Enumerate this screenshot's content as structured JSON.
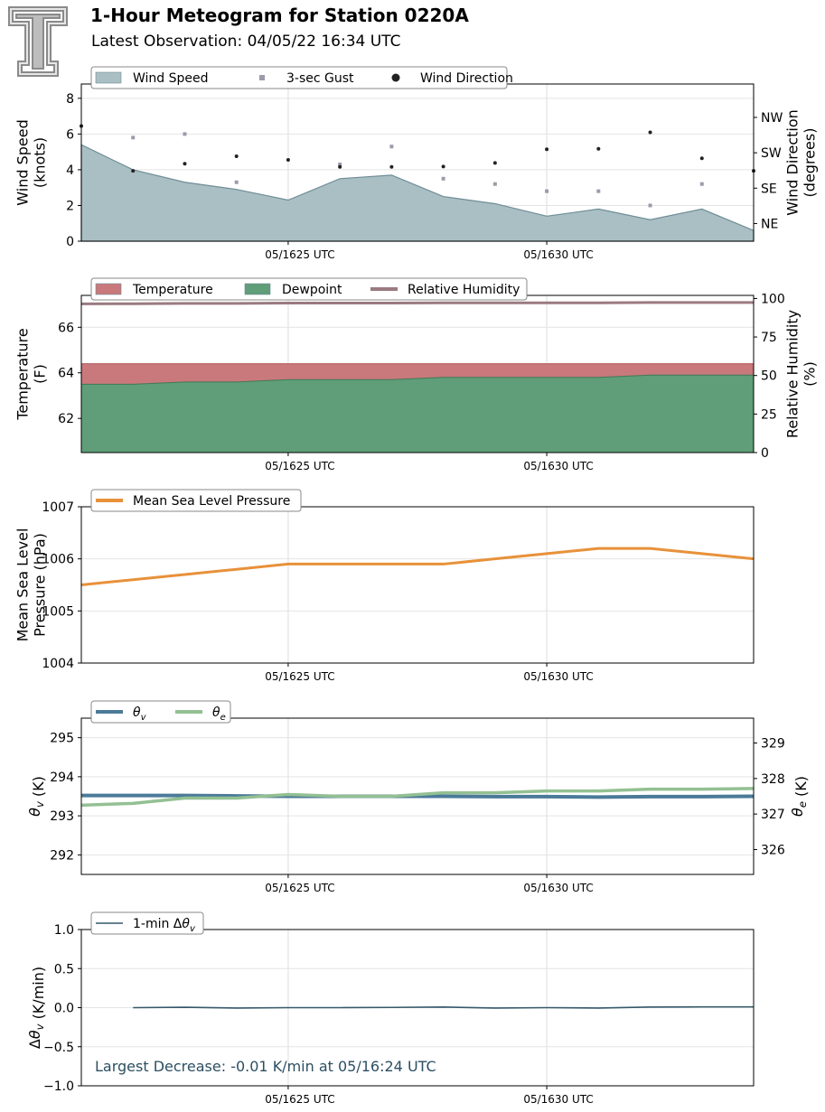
{
  "header": {
    "title": "1-Hour Meteogram for Station 0220A",
    "subtitle": "Latest Observation: 04/05/22 16:34 UTC"
  },
  "colors": {
    "wind_fill": "#a9bfc4",
    "wind_edge": "#6f8d96",
    "gust": "#9b9bab",
    "direction": "#222222",
    "temperature": "#c9797b",
    "dewpoint": "#5f9e78",
    "humidity": "#9a7a80",
    "pressure": "#e8913a",
    "theta_v": "#4b7a99",
    "theta_e": "#93c093",
    "delta": "#34586a",
    "annotation": "#2c4f62"
  },
  "x_axis": {
    "ticks": [
      {
        "value": 4,
        "label": "05/1625 UTC"
      },
      {
        "value": 9,
        "label": "05/1630 UTC"
      }
    ],
    "range": [
      0,
      13
    ]
  },
  "chart_data": [
    {
      "id": "wind",
      "type": "area",
      "ylabel": "Wind Speed\n(knots)",
      "y2label": "Wind Direction\n(degrees)",
      "ylim": [
        0,
        8.8
      ],
      "yticks": [
        0,
        2,
        4,
        6,
        8
      ],
      "y2lim": [
        0,
        400
      ],
      "y2ticks": [
        {
          "value": 45,
          "label": "NE"
        },
        {
          "value": 135,
          "label": "SE"
        },
        {
          "value": 225,
          "label": "SW"
        },
        {
          "value": 315,
          "label": "NW"
        }
      ],
      "legend": [
        "Wind Speed",
        "3-sec Gust",
        "Wind Direction"
      ],
      "x": [
        0,
        1,
        2,
        3,
        4,
        5,
        6,
        7,
        8,
        9,
        10,
        11,
        12,
        13
      ],
      "series": [
        {
          "name": "Wind Speed",
          "values": [
            5.4,
            4.0,
            3.3,
            2.9,
            2.3,
            3.5,
            3.7,
            2.5,
            2.1,
            1.4,
            1.8,
            1.2,
            1.8,
            0.6
          ]
        },
        {
          "name": "3-sec Gust",
          "x": [
            1,
            2,
            3,
            5,
            6,
            7,
            8,
            9,
            10,
            11,
            12
          ],
          "values": [
            5.8,
            6.0,
            3.3,
            4.3,
            5.3,
            3.5,
            3.2,
            2.8,
            2.8,
            2.0,
            3.2
          ]
        },
        {
          "name": "Wind Direction",
          "x": [
            0,
            1,
            2,
            3,
            4,
            5,
            6,
            7,
            8,
            9,
            10,
            11,
            12,
            13
          ],
          "values": [
            293,
            179,
            197,
            216,
            207,
            189,
            189,
            190,
            199,
            234,
            235,
            277,
            211,
            179
          ]
        }
      ],
      "grid": true
    },
    {
      "id": "temp",
      "type": "area",
      "ylabel": "Temperature\n(F)",
      "y2label": "Relative Humidity\n(%)",
      "ylim": [
        60.5,
        67.4
      ],
      "yticks": [
        62,
        64,
        66
      ],
      "y2lim": [
        0,
        102
      ],
      "y2ticks": [
        {
          "value": 0,
          "label": "0"
        },
        {
          "value": 25,
          "label": "25"
        },
        {
          "value": 50,
          "label": "50"
        },
        {
          "value": 75,
          "label": "75"
        },
        {
          "value": 100,
          "label": "100"
        }
      ],
      "legend": [
        "Temperature",
        "Dewpoint",
        "Relative Humidity"
      ],
      "x": [
        0,
        1,
        2,
        3,
        4,
        5,
        6,
        7,
        8,
        9,
        10,
        11,
        12,
        13
      ],
      "series": [
        {
          "name": "Temperature",
          "values": [
            64.4,
            64.4,
            64.4,
            64.4,
            64.4,
            64.4,
            64.4,
            64.4,
            64.4,
            64.4,
            64.4,
            64.4,
            64.4,
            64.4
          ]
        },
        {
          "name": "Dewpoint",
          "values": [
            63.5,
            63.5,
            63.6,
            63.6,
            63.7,
            63.7,
            63.7,
            63.8,
            63.8,
            63.8,
            63.8,
            63.9,
            63.9,
            63.9
          ]
        },
        {
          "name": "Relative Humidity",
          "values": [
            96.5,
            96.6,
            96.8,
            96.8,
            97.0,
            97.0,
            97.0,
            97.2,
            97.2,
            97.2,
            97.2,
            97.4,
            97.4,
            97.4
          ]
        }
      ],
      "grid": true
    },
    {
      "id": "pressure",
      "type": "line",
      "ylabel": "Mean Sea Level\nPressure (hPa)",
      "ylim": [
        1004,
        1007
      ],
      "yticks": [
        1004,
        1005,
        1006,
        1007
      ],
      "legend": [
        "Mean Sea Level Pressure"
      ],
      "x": [
        0,
        1,
        2,
        3,
        4,
        5,
        6,
        7,
        8,
        9,
        10,
        11,
        12,
        13
      ],
      "series": [
        {
          "name": "Mean Sea Level Pressure",
          "values": [
            1005.5,
            1005.6,
            1005.7,
            1005.8,
            1005.9,
            1005.9,
            1005.9,
            1005.9,
            1006.0,
            1006.1,
            1006.2,
            1006.2,
            1006.1,
            1006.0
          ]
        }
      ],
      "grid": true
    },
    {
      "id": "theta",
      "type": "line",
      "ylabel": "θv (K)",
      "y2label": "θe (K)",
      "ylim": [
        291.5,
        295.5
      ],
      "yticks": [
        292,
        293,
        294,
        295
      ],
      "y2lim": [
        325.3,
        329.7
      ],
      "y2ticks": [
        {
          "value": 326,
          "label": "326"
        },
        {
          "value": 327,
          "label": "327"
        },
        {
          "value": 328,
          "label": "328"
        },
        {
          "value": 329,
          "label": "329"
        }
      ],
      "legend": [
        "θv",
        "θe"
      ],
      "x": [
        0,
        1,
        2,
        3,
        4,
        5,
        6,
        7,
        8,
        9,
        10,
        11,
        12,
        13
      ],
      "series": [
        {
          "name": "θv",
          "values": [
            293.52,
            293.52,
            293.52,
            293.51,
            293.5,
            293.5,
            293.5,
            293.5,
            293.49,
            293.49,
            293.48,
            293.49,
            293.49,
            293.5
          ]
        },
        {
          "name": "θe",
          "values": [
            327.25,
            327.3,
            327.45,
            327.45,
            327.55,
            327.5,
            327.5,
            327.6,
            327.6,
            327.65,
            327.65,
            327.7,
            327.7,
            327.72
          ]
        }
      ],
      "grid": true
    },
    {
      "id": "delta",
      "type": "line",
      "ylabel": "Δθv (K/min)",
      "ylim": [
        -1.0,
        1.0
      ],
      "yticks": [
        {
          "value": -1.0,
          "label": "−1.0"
        },
        {
          "value": -0.5,
          "label": "−0.5"
        },
        {
          "value": 0.0,
          "label": "0.0"
        },
        {
          "value": 0.5,
          "label": "0.5"
        },
        {
          "value": 1.0,
          "label": "1.0"
        }
      ],
      "legend": [
        "1-min Δθv"
      ],
      "x": [
        1,
        2,
        3,
        4,
        5,
        6,
        7,
        8,
        9,
        10,
        11,
        12,
        13
      ],
      "series": [
        {
          "name": "1-min Δθv",
          "values": [
            0.0,
            0.005,
            -0.005,
            0.0,
            0.0,
            0.003,
            0.008,
            -0.005,
            0.0,
            -0.005,
            0.008,
            0.01,
            0.01
          ]
        }
      ],
      "annotation": "Largest Decrease: -0.01 K/min at 05/16:24 UTC",
      "grid": true
    }
  ]
}
